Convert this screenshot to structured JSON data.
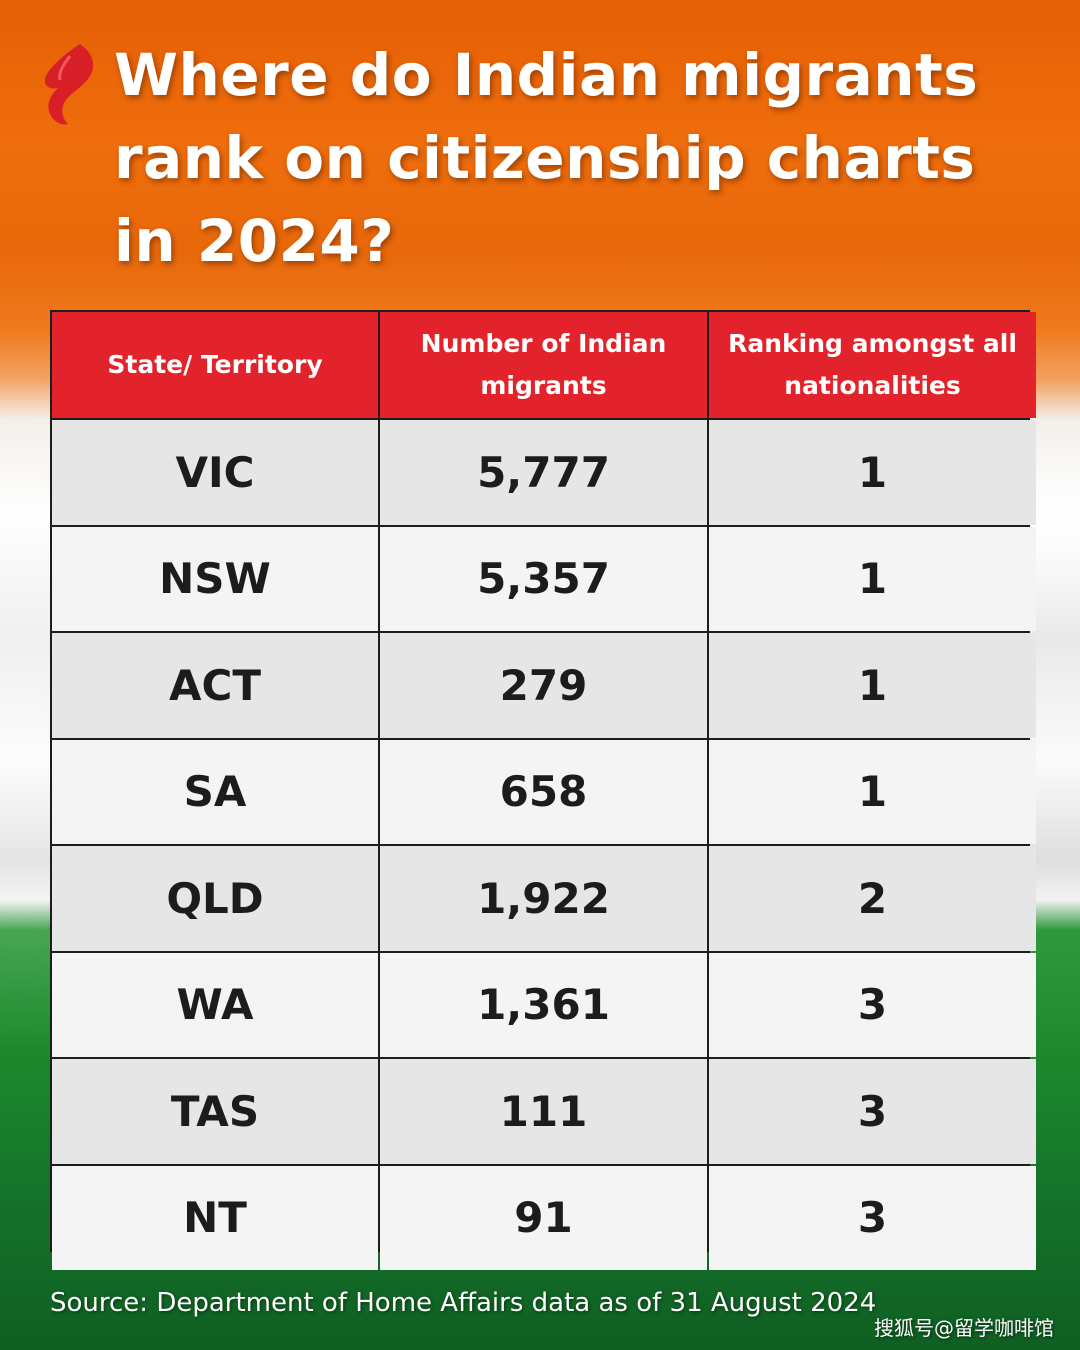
{
  "title": "Where do Indian migrants rank on citizenship charts in 2024?",
  "headers": [
    "State/ Territory",
    "Number of Indian migrants",
    "Ranking amongst all nationalities"
  ],
  "rows": [
    [
      "VIC",
      "5,777",
      "1"
    ],
    [
      "NSW",
      "5,357",
      "1"
    ],
    [
      "ACT",
      "279",
      "1"
    ],
    [
      "SA",
      "658",
      "1"
    ],
    [
      "QLD",
      "1,922",
      "2"
    ],
    [
      "WA",
      "1,361",
      "3"
    ],
    [
      "TAS",
      "111",
      "3"
    ],
    [
      "NT",
      "91",
      "3"
    ]
  ],
  "source": "Source: Department of Home Affairs data as of 31 August 2024",
  "watermark": "搜狐号@留学咖啡馆",
  "colors": {
    "header": "#e3232b",
    "orange": "#ef6d0c",
    "green": "#1d8a2d"
  },
  "chart_data": {
    "type": "table",
    "title": "Where do Indian migrants rank on citizenship charts in 2024?",
    "columns": [
      "State/ Territory",
      "Number of Indian migrants",
      "Ranking amongst all nationalities"
    ],
    "rows": [
      [
        "VIC",
        5777,
        1
      ],
      [
        "NSW",
        5357,
        1
      ],
      [
        "ACT",
        279,
        1
      ],
      [
        "SA",
        658,
        1
      ],
      [
        "QLD",
        1922,
        2
      ],
      [
        "WA",
        1361,
        3
      ],
      [
        "TAS",
        111,
        3
      ],
      [
        "NT",
        91,
        3
      ]
    ]
  }
}
